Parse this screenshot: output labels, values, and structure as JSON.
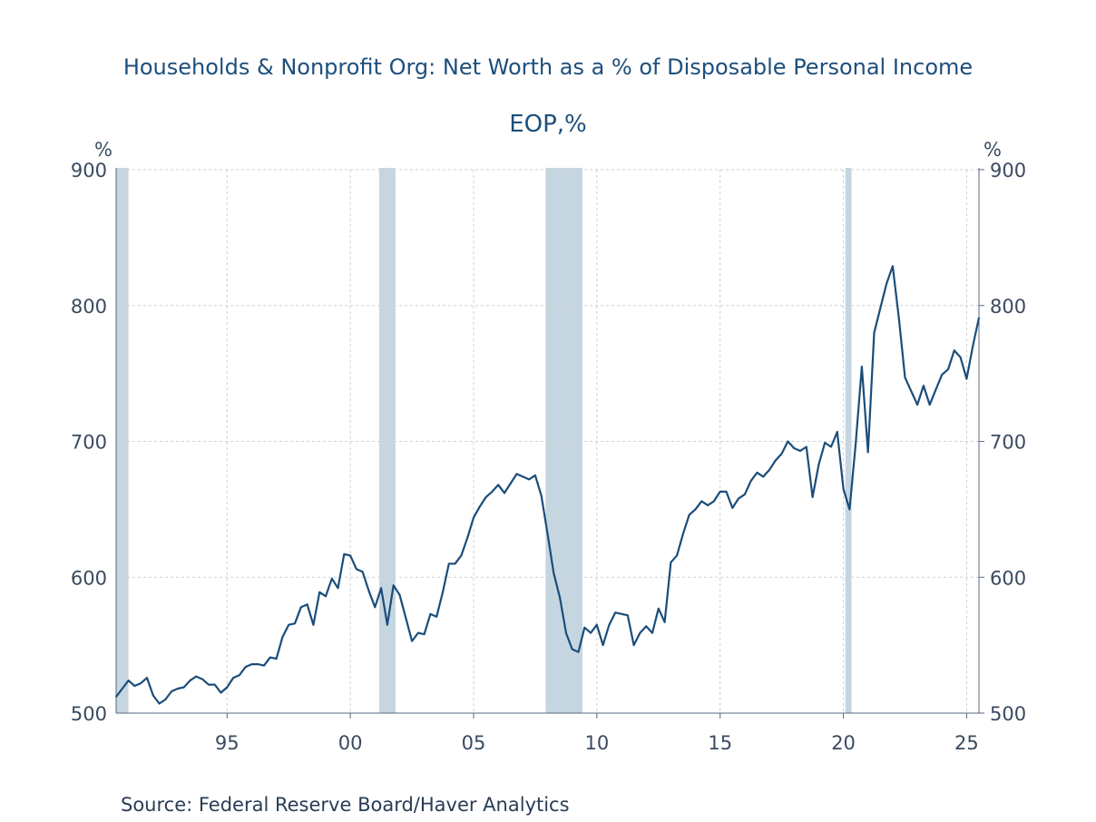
{
  "chart_data": {
    "type": "line",
    "title": "Households & Nonprofit Org: Net Worth as a % of Disposable Personal Income",
    "subtitle": "EOP,%",
    "source": "Source:  Federal Reserve Board/Haver Analytics",
    "ylabel_left": "%",
    "ylabel_right": "%",
    "ylim": [
      500,
      900
    ],
    "yticks": [
      500,
      600,
      700,
      800,
      900
    ],
    "xlim": [
      1990.5,
      2025.5
    ],
    "xticks": [
      {
        "value": 1995,
        "label": "95"
      },
      {
        "value": 2000,
        "label": "00"
      },
      {
        "value": 2005,
        "label": "05"
      },
      {
        "value": 2010,
        "label": "10"
      },
      {
        "value": 2015,
        "label": "15"
      },
      {
        "value": 2020,
        "label": "20"
      },
      {
        "value": 2025,
        "label": "25"
      }
    ],
    "grid": true,
    "recessions": [
      {
        "start": 1990.5,
        "end": 1991.0
      },
      {
        "start": 2001.17,
        "end": 2001.83
      },
      {
        "start": 2007.92,
        "end": 2009.42
      },
      {
        "start": 2020.08,
        "end": 2020.33
      }
    ],
    "series": [
      {
        "name": "Net Worth as % of Disposable Personal Income",
        "color": "#1b4d7a",
        "x": [
          1990.5,
          1990.75,
          1991.0,
          1991.25,
          1991.5,
          1991.75,
          1992.0,
          1992.25,
          1992.5,
          1992.75,
          1993.0,
          1993.25,
          1993.5,
          1993.75,
          1994.0,
          1994.25,
          1994.5,
          1994.75,
          1995.0,
          1995.25,
          1995.5,
          1995.75,
          1996.0,
          1996.25,
          1996.5,
          1996.75,
          1997.0,
          1997.25,
          1997.5,
          1997.75,
          1998.0,
          1998.25,
          1998.5,
          1998.75,
          1999.0,
          1999.25,
          1999.5,
          1999.75,
          2000.0,
          2000.25,
          2000.5,
          2000.75,
          2001.0,
          2001.25,
          2001.5,
          2001.75,
          2002.0,
          2002.25,
          2002.5,
          2002.75,
          2003.0,
          2003.25,
          2003.5,
          2003.75,
          2004.0,
          2004.25,
          2004.5,
          2004.75,
          2005.0,
          2005.25,
          2005.5,
          2005.75,
          2006.0,
          2006.25,
          2006.5,
          2006.75,
          2007.0,
          2007.25,
          2007.5,
          2007.75,
          2008.0,
          2008.25,
          2008.5,
          2008.75,
          2009.0,
          2009.25,
          2009.5,
          2009.75,
          2010.0,
          2010.25,
          2010.5,
          2010.75,
          2011.0,
          2011.25,
          2011.5,
          2011.75,
          2012.0,
          2012.25,
          2012.5,
          2012.75,
          2013.0,
          2013.25,
          2013.5,
          2013.75,
          2014.0,
          2014.25,
          2014.5,
          2014.75,
          2015.0,
          2015.25,
          2015.5,
          2015.75,
          2016.0,
          2016.25,
          2016.5,
          2016.75,
          2017.0,
          2017.25,
          2017.5,
          2017.75,
          2018.0,
          2018.25,
          2018.5,
          2018.75,
          2019.0,
          2019.25,
          2019.5,
          2019.75,
          2020.0,
          2020.25,
          2020.5,
          2020.75,
          2021.0,
          2021.25,
          2021.5,
          2021.75,
          2022.0,
          2022.25,
          2022.5,
          2022.75,
          2023.0,
          2023.25,
          2023.5,
          2023.75,
          2024.0,
          2024.25,
          2024.5,
          2024.75,
          2025.0,
          2025.25,
          2025.5
        ],
        "values": [
          512,
          518,
          524,
          520,
          522,
          526,
          513,
          507,
          510,
          516,
          518,
          519,
          524,
          527,
          525,
          521,
          521,
          515,
          519,
          526,
          528,
          534,
          536,
          536,
          535,
          541,
          540,
          556,
          565,
          566,
          578,
          580,
          565,
          589,
          586,
          599,
          592,
          617,
          616,
          606,
          604,
          590,
          578,
          592,
          565,
          594,
          587,
          570,
          553,
          559,
          558,
          573,
          571,
          589,
          610,
          610,
          616,
          629,
          644,
          652,
          659,
          663,
          668,
          662,
          669,
          676,
          674,
          672,
          675,
          660,
          632,
          603,
          585,
          559,
          547,
          545,
          563,
          559,
          565,
          550,
          565,
          574,
          573,
          572,
          550,
          559,
          564,
          559,
          577,
          567,
          611,
          616,
          632,
          646,
          650,
          656,
          653,
          656,
          663,
          663,
          651,
          658,
          661,
          671,
          677,
          674,
          679,
          686,
          691,
          700,
          695,
          693,
          696,
          659,
          683,
          699,
          696,
          707,
          665,
          650,
          698,
          755,
          692,
          780,
          798,
          816,
          829,
          791,
          747,
          737,
          727,
          741,
          727,
          738,
          749,
          753,
          767,
          762,
          746,
          770,
          791
        ]
      }
    ]
  }
}
